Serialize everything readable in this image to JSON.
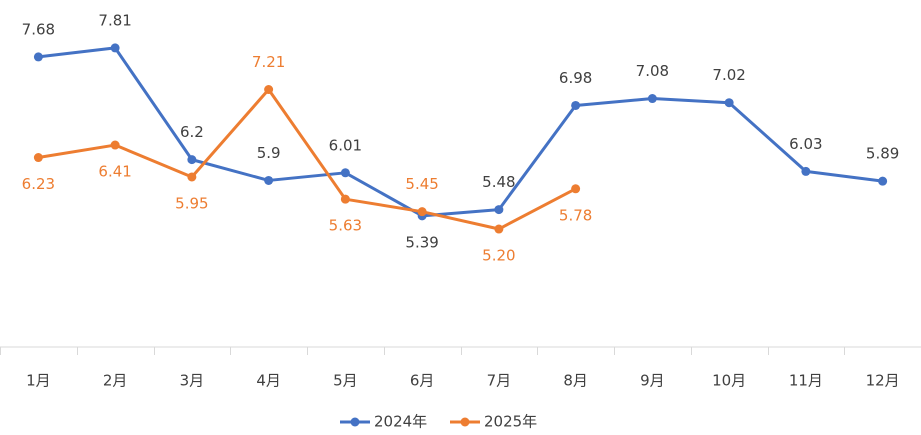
{
  "chart_data": {
    "type": "line",
    "categories": [
      "1月",
      "2月",
      "3月",
      "4月",
      "5月",
      "6月",
      "7月",
      "8月",
      "9月",
      "10月",
      "11月",
      "12月"
    ],
    "series": [
      {
        "name": "2024年",
        "color": "#4472c4",
        "values": [
          7.68,
          7.81,
          6.2,
          5.9,
          6.01,
          5.39,
          5.48,
          6.98,
          7.08,
          7.02,
          6.03,
          5.89
        ]
      },
      {
        "name": "2025年",
        "color": "#ed7d31",
        "values": [
          6.23,
          6.41,
          5.95,
          7.21,
          5.63,
          5.45,
          5.2,
          5.78,
          null,
          null,
          null,
          null
        ],
        "value_labels": [
          "6.23",
          "6.41",
          "5.95",
          "7.21",
          "5.63",
          "5.45",
          "5.20",
          "5.78",
          null,
          null,
          null,
          null
        ]
      }
    ],
    "ylim": [
      3.5,
      8.5
    ],
    "grid": false,
    "legend": "bottom"
  }
}
